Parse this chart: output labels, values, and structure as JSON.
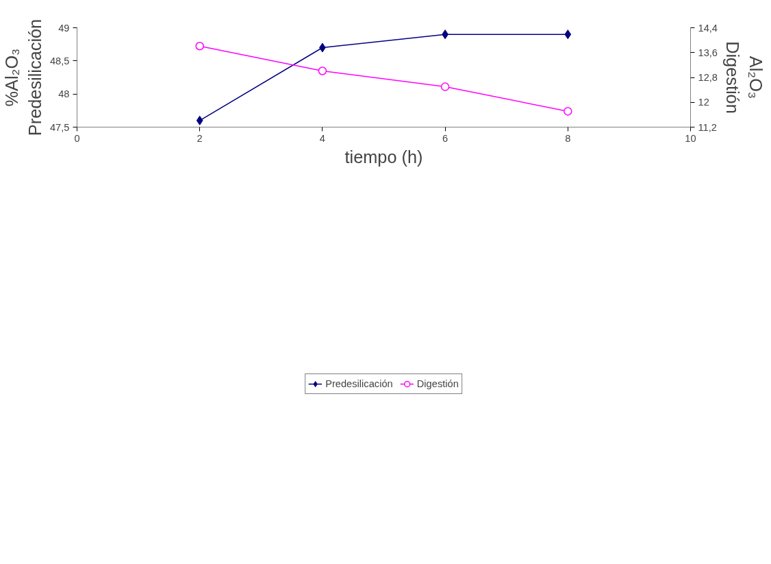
{
  "chart_data": {
    "type": "line",
    "xlabel": "tiempo (h)",
    "ylabel": "%Al₂O₃\nPredesilicación",
    "y2label": "Al₂O₃\nDigestión",
    "x": [
      2,
      4,
      6,
      8
    ],
    "series": [
      {
        "name": "Predesilicación",
        "color": "#000080",
        "values": [
          47.6,
          48.7,
          48.9,
          48.9
        ],
        "marker": "diamond"
      },
      {
        "name": "Digestión",
        "color": "#ff00ff",
        "values": [
          13.81,
          13.01,
          12.5,
          11.71
        ],
        "marker": "circle",
        "axis": "y2"
      }
    ],
    "xlim": [
      0,
      10
    ],
    "xticks": [
      0,
      2,
      4,
      6,
      8,
      10
    ],
    "ylim": [
      47.5,
      49
    ],
    "yticks": [
      {
        "value": 47.5,
        "label": "47,5"
      },
      48,
      {
        "value": 48.5,
        "label": "48,5"
      },
      49
    ],
    "y2lim": [
      11.2,
      14.4
    ],
    "y2ticks": [
      {
        "value": 11.2,
        "label": "11,2"
      },
      12,
      {
        "value": 12.8,
        "label": "12,8"
      },
      {
        "value": 13.6,
        "label": "13,6"
      },
      {
        "value": 14.4,
        "label": "14,4"
      }
    ],
    "grid": false,
    "legend": "bottom",
    "line_style": "solid"
  }
}
